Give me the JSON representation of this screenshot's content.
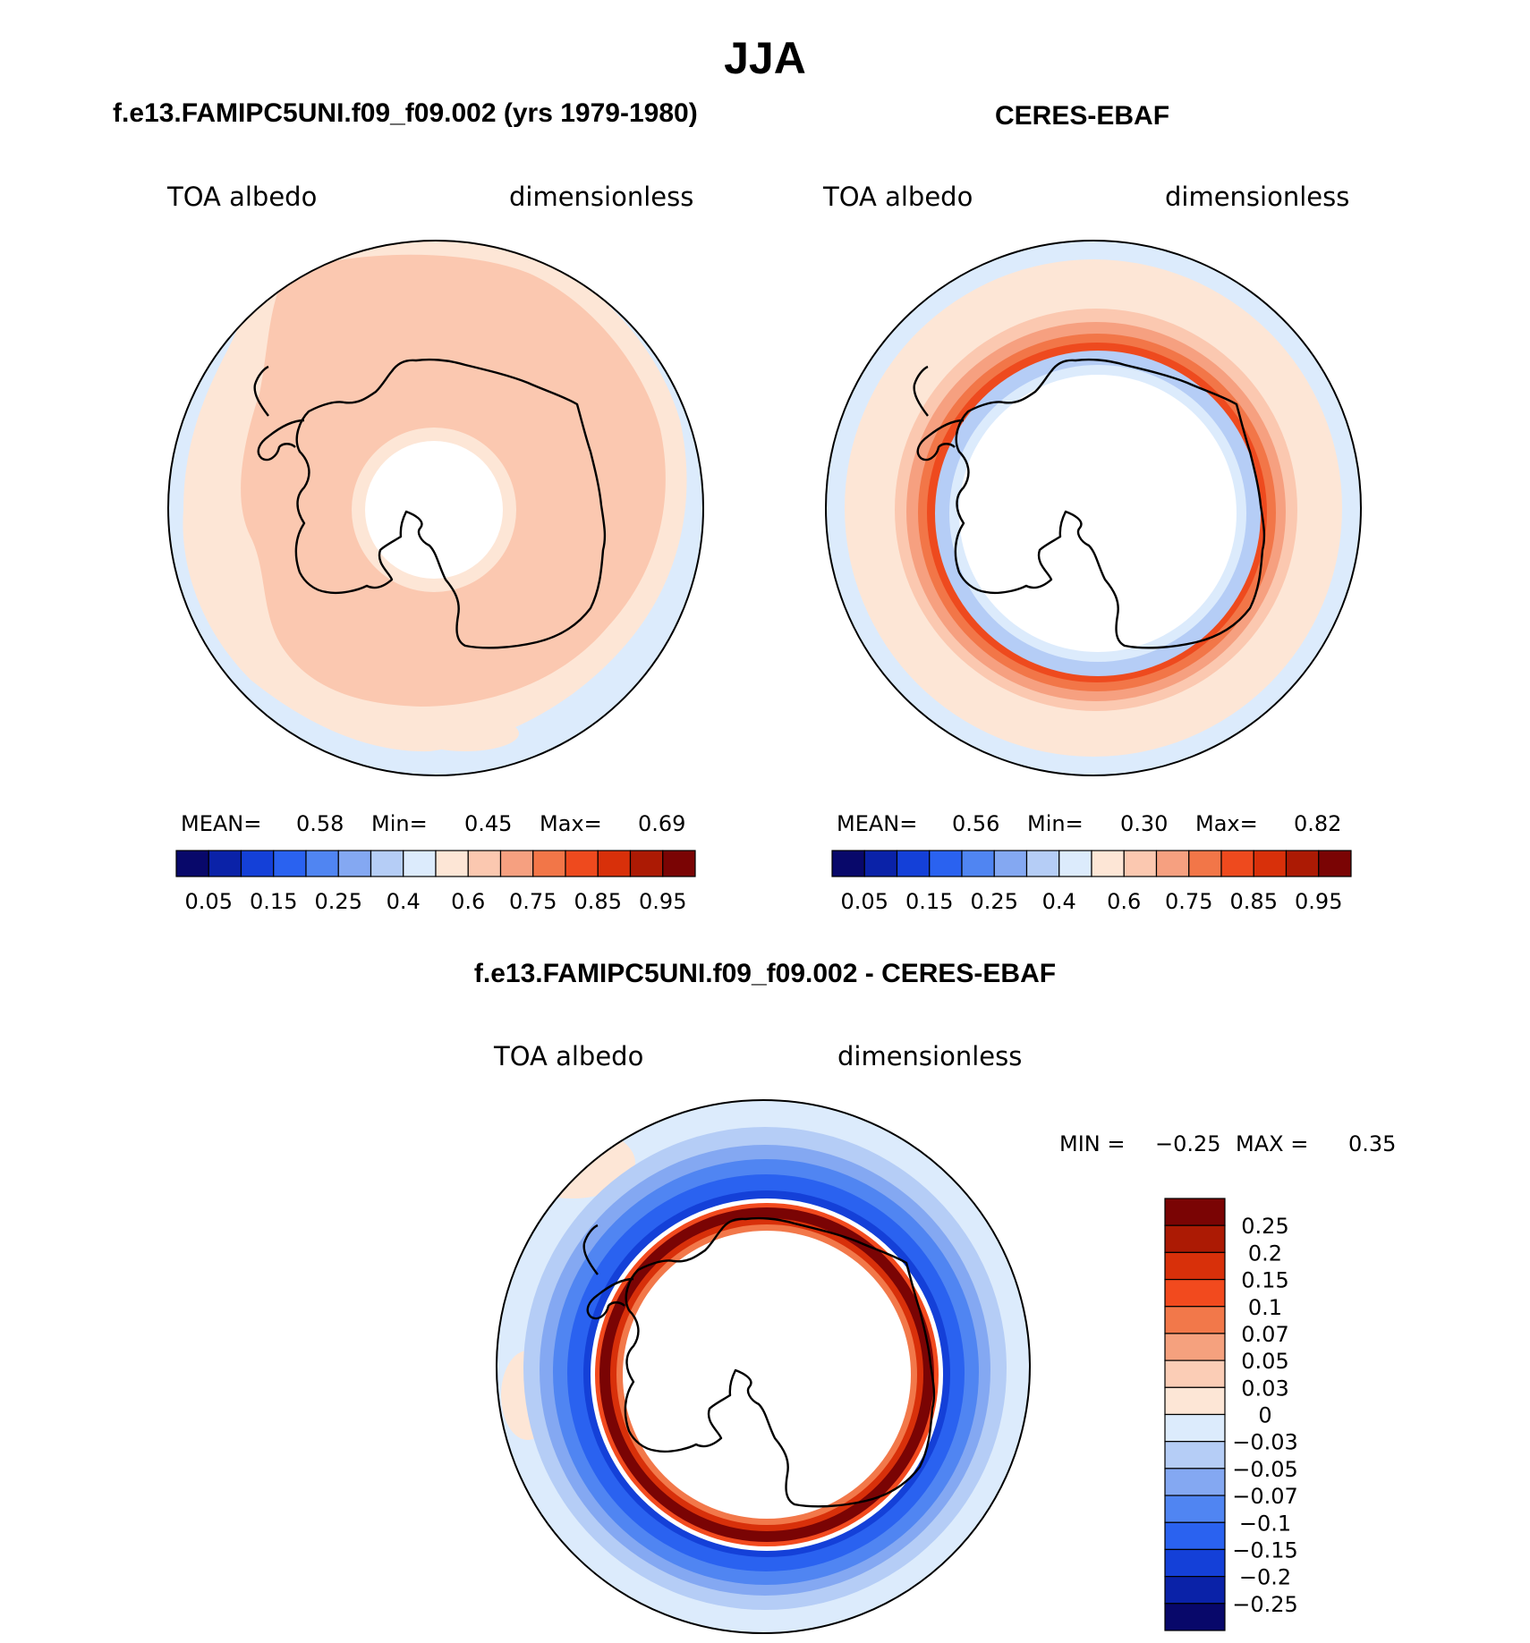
{
  "figure": {
    "title": "JJA",
    "panels": [
      {
        "id": "model",
        "title": "f.e13.FAMIPC5UNI.f09_f09.002 (yrs 1979-1980)",
        "variable": "TOA albedo",
        "units": "dimensionless",
        "stats": {
          "mean_label": "MEAN=",
          "mean": "0.58",
          "min_label": "Min=",
          "min": "0.45",
          "max_label": "Max=",
          "max": "0.69"
        }
      },
      {
        "id": "obs",
        "title": "CERES-EBAF",
        "variable": "TOA albedo",
        "units": "dimensionless",
        "stats": {
          "mean_label": "MEAN=",
          "mean": "0.56",
          "min_label": "Min=",
          "min": "0.30",
          "max_label": "Max=",
          "max": "0.82"
        }
      },
      {
        "id": "diff",
        "title": "f.e13.FAMIPC5UNI.f09_f09.002 - CERES-EBAF",
        "variable": "TOA albedo",
        "units": "dimensionless",
        "stats": {
          "min_label": "MIN =",
          "min": "−0.25",
          "max_label": "MAX =",
          "max": "0.35"
        }
      }
    ]
  },
  "colorbars": {
    "main": {
      "colors": [
        "#08086a",
        "#0a22a8",
        "#1440d8",
        "#2a62f0",
        "#5085f2",
        "#84a8f2",
        "#b5cdf6",
        "#dcebfc",
        "#fde6d6",
        "#fbc8b0",
        "#f6a080",
        "#f27648",
        "#ee4a1e",
        "#d8300a",
        "#ac1a04",
        "#7a0404"
      ],
      "labels": [
        "0.05",
        "0.15",
        "0.25",
        "0.4",
        "0.6",
        "0.75",
        "0.85",
        "0.95"
      ]
    },
    "diff": {
      "colors_top_to_bottom": [
        "#7a0404",
        "#ac1a04",
        "#d8300a",
        "#f24a1e",
        "#f2784a",
        "#f5a17e",
        "#fbcdb6",
        "#fde6d6",
        "#dcebfc",
        "#b5cdf6",
        "#84a8f2",
        "#5085f2",
        "#2a62f0",
        "#1440d8",
        "#0a22a8",
        "#08086a"
      ],
      "labels": [
        "0.25",
        "0.2",
        "0.15",
        "0.1",
        "0.07",
        "0.05",
        "0.03",
        "0",
        "−0.03",
        "−0.05",
        "−0.07",
        "−0.1",
        "−0.15",
        "−0.2",
        "−0.25"
      ]
    }
  },
  "chart_data": [
    {
      "type": "heatmap",
      "projection": "south polar stereographic",
      "title": "f.e13.FAMIPC5UNI.f09_f09.002 (yrs 1979-1980)",
      "variable": "TOA albedo",
      "units": "dimensionless",
      "mean": 0.58,
      "min": 0.45,
      "max": 0.69,
      "contour_levels": [
        0.05,
        0.1,
        0.15,
        0.2,
        0.25,
        0.3,
        0.4,
        0.5,
        0.6,
        0.7,
        0.75,
        0.8,
        0.85,
        0.9,
        0.95
      ]
    },
    {
      "type": "heatmap",
      "projection": "south polar stereographic",
      "title": "CERES-EBAF",
      "variable": "TOA albedo",
      "units": "dimensionless",
      "mean": 0.56,
      "min": 0.3,
      "max": 0.82,
      "contour_levels": [
        0.05,
        0.1,
        0.15,
        0.2,
        0.25,
        0.3,
        0.4,
        0.5,
        0.6,
        0.7,
        0.75,
        0.8,
        0.85,
        0.9,
        0.95
      ]
    },
    {
      "type": "heatmap",
      "projection": "south polar stereographic",
      "title": "f.e13.FAMIPC5UNI.f09_f09.002 - CERES-EBAF",
      "variable": "TOA albedo",
      "units": "dimensionless",
      "min": -0.25,
      "max": 0.35,
      "contour_levels": [
        -0.25,
        -0.2,
        -0.15,
        -0.1,
        -0.07,
        -0.05,
        -0.03,
        0,
        0.03,
        0.05,
        0.07,
        0.1,
        0.15,
        0.2,
        0.25
      ]
    }
  ]
}
